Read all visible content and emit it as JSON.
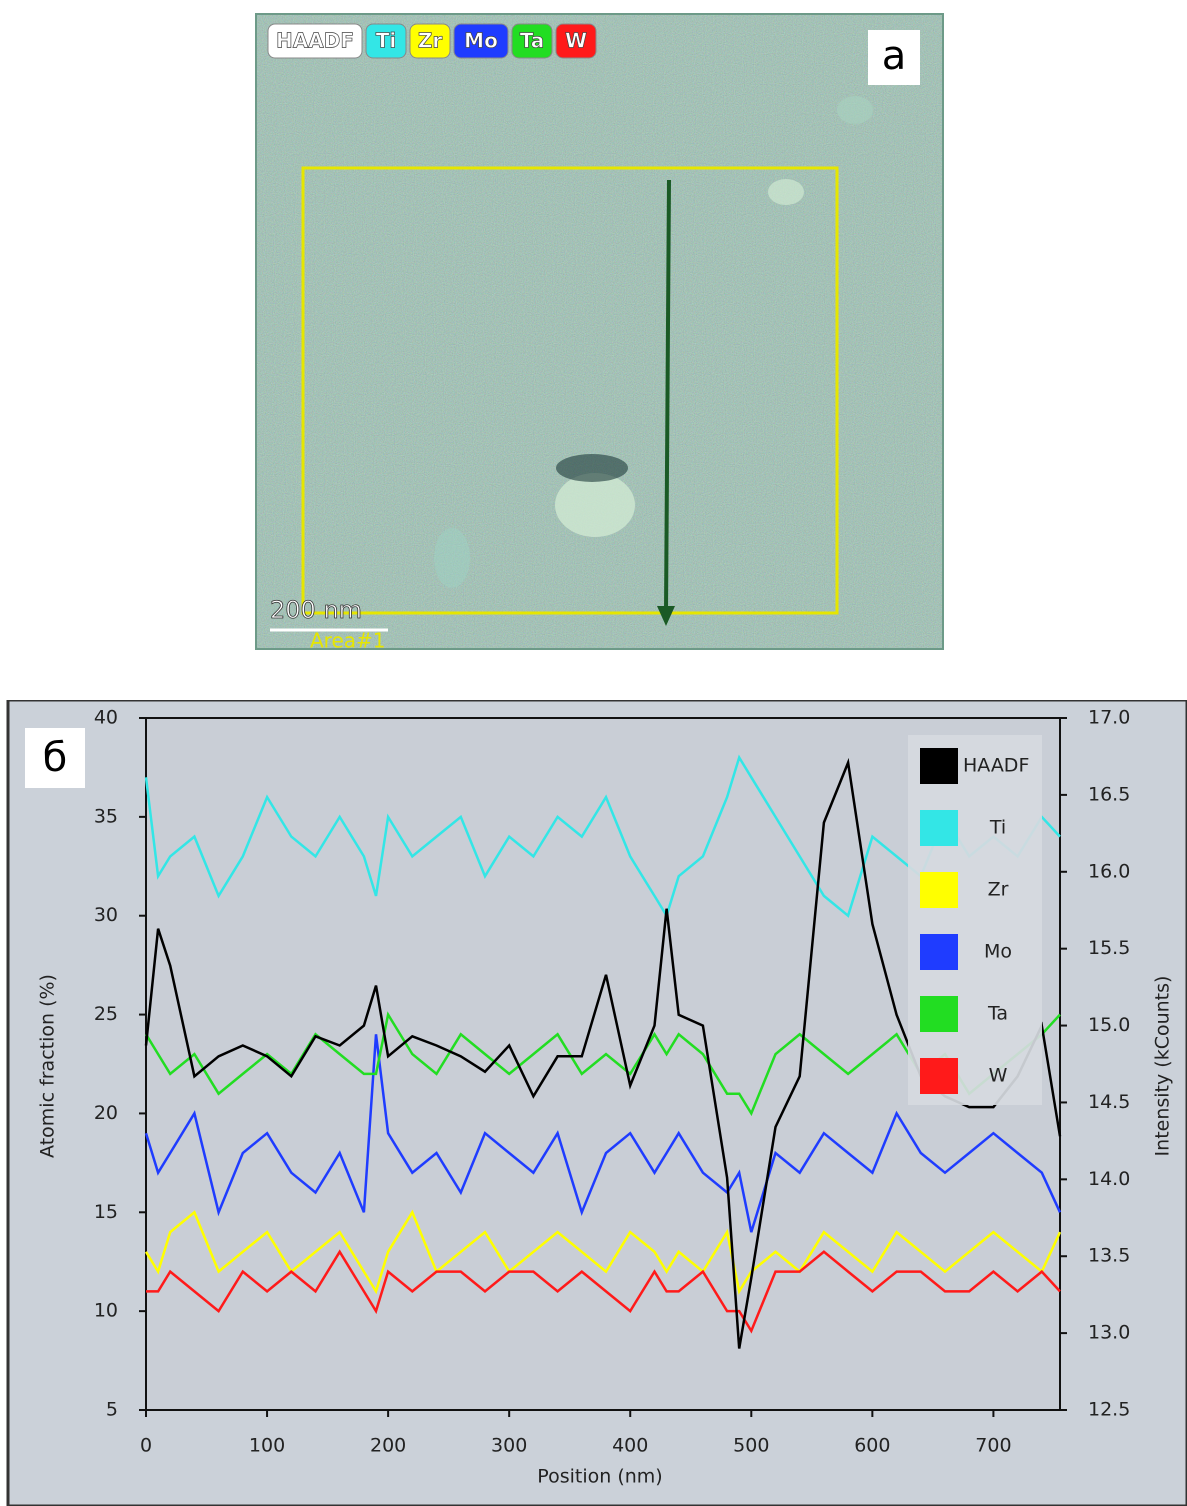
{
  "image_panel": {
    "label": "а",
    "legend": [
      "HAADF",
      "Ti",
      "Zr",
      "Mo",
      "Ta",
      "W"
    ],
    "legend_colors": [
      "#ffffff",
      "#33e6e6",
      "#ffff00",
      "#1f3cff",
      "#22dd22",
      "#ff1a1a"
    ],
    "scale_bar": "200 nm",
    "region_label": "Area#1"
  },
  "chart_data": {
    "type": "line",
    "panel_label": "б",
    "x_label": "Position (nm)",
    "y_label": "Atomic fraction (%)",
    "y2_label": "Intensity (kCounts)",
    "xlim": [
      0,
      755
    ],
    "xticks": [
      0,
      100,
      200,
      300,
      400,
      500,
      600,
      700
    ],
    "ylim": [
      5,
      40
    ],
    "yticks": [
      5,
      10,
      15,
      20,
      25,
      30,
      35,
      40
    ],
    "y2lim": [
      12.5,
      17.0
    ],
    "y2ticks": [
      12.5,
      {
        "value": 13,
        "label": "13.0"
      },
      13.5,
      {
        "value": 14,
        "label": "14.0"
      },
      14.5,
      {
        "value": 15,
        "label": "15.0"
      },
      15.5,
      {
        "value": 16,
        "label": "16.0"
      },
      16.5,
      {
        "value": 17,
        "label": "17.0"
      }
    ],
    "legend_position": "upper right",
    "x": [
      0,
      10,
      20,
      40,
      60,
      80,
      100,
      120,
      140,
      160,
      180,
      190,
      200,
      220,
      240,
      260,
      280,
      300,
      320,
      340,
      360,
      380,
      400,
      420,
      430,
      440,
      460,
      480,
      490,
      500,
      520,
      540,
      560,
      580,
      600,
      620,
      640,
      660,
      680,
      700,
      720,
      740,
      755
    ],
    "series": [
      {
        "name": "HAADF",
        "color": "#000000",
        "axis": "y2",
        "values": [
          14.87,
          15.63,
          15.39,
          14.67,
          14.8,
          14.87,
          14.8,
          14.67,
          14.93,
          14.87,
          15.0,
          15.26,
          14.8,
          14.93,
          14.87,
          14.8,
          14.7,
          14.87,
          14.54,
          14.8,
          14.8,
          15.33,
          14.61,
          15.0,
          15.76,
          15.07,
          15.0,
          14.01,
          12.9,
          13.36,
          14.34,
          14.67,
          16.32,
          16.71,
          15.66,
          15.07,
          14.67,
          14.54,
          14.47,
          14.47,
          14.67,
          15.0,
          14.28
        ]
      },
      {
        "name": "Ti",
        "color": "#33e6e6",
        "values": [
          37,
          32,
          33,
          34,
          31,
          33,
          36,
          34,
          33,
          35,
          33,
          31,
          35,
          33,
          34,
          35,
          32,
          34,
          33,
          35,
          34,
          36,
          33,
          31,
          30,
          32,
          33,
          36,
          38,
          37,
          35,
          33,
          31,
          30,
          34,
          33,
          32,
          35,
          33,
          34,
          33,
          35,
          34
        ]
      },
      {
        "name": "Zr",
        "color": "#ffff00",
        "values": [
          13,
          12,
          14,
          15,
          12,
          13,
          14,
          12,
          13,
          14,
          12,
          11,
          13,
          15,
          12,
          13,
          14,
          12,
          13,
          14,
          13,
          12,
          14,
          13,
          12,
          13,
          12,
          14,
          11,
          12,
          13,
          12,
          14,
          13,
          12,
          14,
          13,
          12,
          13,
          14,
          13,
          12,
          14
        ]
      },
      {
        "name": "Mo",
        "color": "#1f3cff",
        "values": [
          19,
          17,
          18,
          20,
          15,
          18,
          19,
          17,
          16,
          18,
          15,
          24,
          19,
          17,
          18,
          16,
          19,
          18,
          17,
          19,
          15,
          18,
          19,
          17,
          18,
          19,
          17,
          16,
          17,
          14,
          18,
          17,
          19,
          18,
          17,
          20,
          18,
          17,
          18,
          19,
          18,
          17,
          15
        ]
      },
      {
        "name": "Ta",
        "color": "#22dd22",
        "values": [
          24,
          23,
          22,
          23,
          21,
          22,
          23,
          22,
          24,
          23,
          22,
          22,
          25,
          23,
          22,
          24,
          23,
          22,
          23,
          24,
          22,
          23,
          22,
          24,
          23,
          24,
          23,
          21,
          21,
          20,
          23,
          24,
          23,
          22,
          23,
          24,
          22,
          23,
          21,
          22,
          23,
          24,
          25
        ]
      },
      {
        "name": "W",
        "color": "#ff1a1a",
        "values": [
          11,
          11,
          12,
          11,
          10,
          12,
          11,
          12,
          11,
          13,
          11,
          10,
          12,
          11,
          12,
          12,
          11,
          12,
          12,
          11,
          12,
          11,
          10,
          12,
          11,
          11,
          12,
          10,
          10,
          9,
          12,
          12,
          13,
          12,
          11,
          12,
          12,
          11,
          11,
          12,
          11,
          12,
          11
        ]
      }
    ]
  }
}
